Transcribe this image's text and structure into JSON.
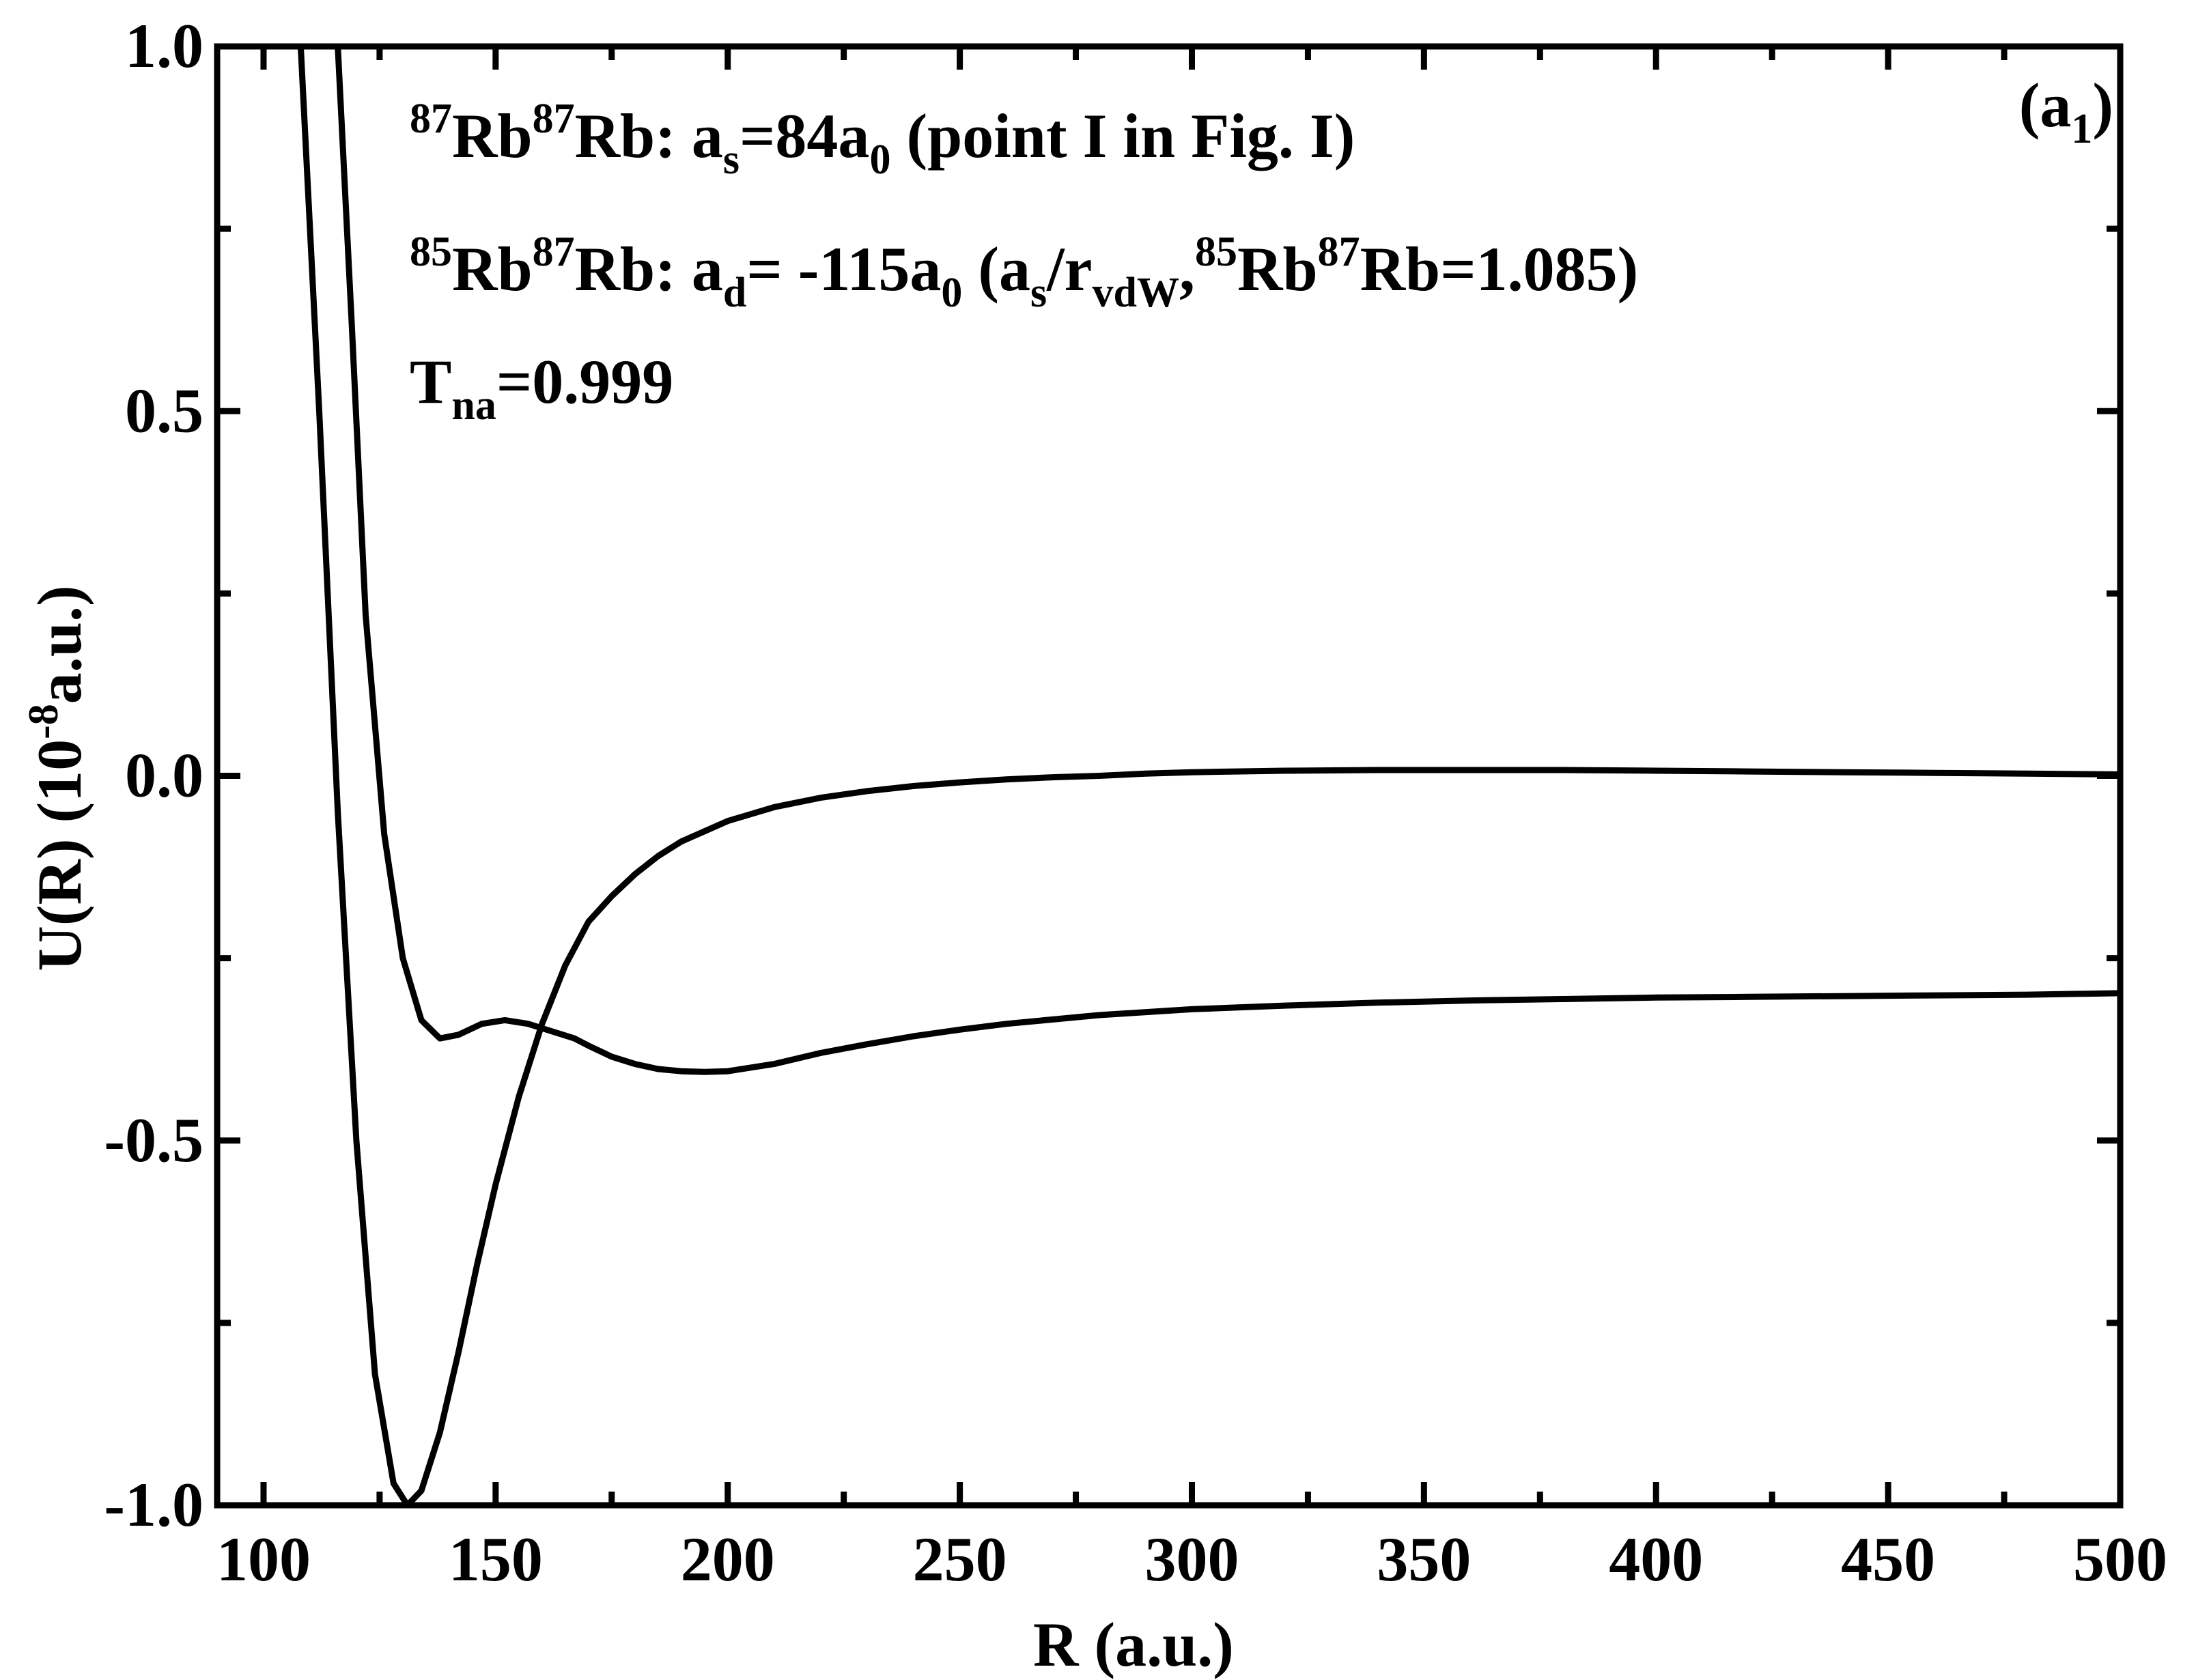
{
  "chart_data": {
    "type": "line",
    "xlabel": "R (a.u.)",
    "ylabel": {
      "main": "U(R) (10",
      "exp": "-8",
      "unit": "a.u.)"
    },
    "xlim": [
      90,
      500
    ],
    "ylim": [
      -1.0,
      1.0
    ],
    "x_ticks": [
      100,
      150,
      200,
      250,
      300,
      350,
      400,
      450,
      500
    ],
    "x_tick_labels": [
      "100",
      "150",
      "200",
      "250",
      "300",
      "350",
      "400",
      "450",
      "500"
    ],
    "y_ticks": [
      -1.0,
      -0.5,
      0.0,
      0.5,
      1.0
    ],
    "y_tick_labels": [
      "-1.0",
      "-0.5",
      "0.0",
      "0.5",
      "1.0"
    ],
    "grid": false,
    "panel_label": {
      "open": "(a",
      "sub": "1",
      "close": ")"
    },
    "annotations": {
      "line1": {
        "sup1": "87",
        "t1": "Rb",
        "sup2": "87",
        "t2": "Rb: a",
        "sub1": "s",
        "t3": "=84a",
        "sub2": "0",
        "t4": " (point I in Fig. I)"
      },
      "line2": {
        "sup1": "85",
        "t1": "Rb",
        "sup2": "87",
        "t2": "Rb: a",
        "sub1": "d",
        "t3": "= -115a",
        "sub2": "0",
        "t4": "  (a",
        "sub3": "s",
        "t5": "/r",
        "sub4": "vdW",
        "t6": ",",
        "sup3": "85",
        "t7": "Rb",
        "sup4": "87",
        "t8": "Rb=1.085)"
      },
      "line3": {
        "t1": "T",
        "sub1": "na",
        "t2": "=0.999"
      }
    },
    "series": [
      {
        "x": [
          108,
          112,
          116,
          120,
          124,
          128,
          131,
          134,
          138,
          142,
          146,
          150,
          155,
          160,
          165,
          170,
          175,
          180,
          185,
          190,
          200,
          210,
          220,
          230,
          240,
          250,
          260,
          270,
          280,
          290,
          300,
          320,
          340,
          360,
          380,
          400,
          420,
          440,
          460,
          480,
          500
        ],
        "y": [
          1.0,
          0.5,
          -0.05,
          -0.5,
          -0.82,
          -0.97,
          -1.0,
          -0.98,
          -0.9,
          -0.79,
          -0.67,
          -0.56,
          -0.44,
          -0.34,
          -0.26,
          -0.2,
          -0.165,
          -0.135,
          -0.11,
          -0.09,
          -0.062,
          -0.043,
          -0.03,
          -0.021,
          -0.014,
          -0.009,
          -0.005,
          -0.002,
          0.0,
          0.003,
          0.005,
          0.007,
          0.008,
          0.008,
          0.008,
          0.007,
          0.006,
          0.005,
          0.004,
          0.003,
          0.002
        ]
      },
      {
        "x": [
          116,
          119,
          122,
          126,
          130,
          134,
          138,
          142,
          147,
          152,
          157,
          162,
          167,
          170,
          175,
          180,
          185,
          190,
          195,
          200,
          210,
          220,
          230,
          240,
          250,
          260,
          280,
          300,
          320,
          340,
          360,
          380,
          400,
          420,
          440,
          460,
          480,
          500
        ],
        "y": [
          1.0,
          0.62,
          0.22,
          -0.08,
          -0.25,
          -0.335,
          -0.36,
          -0.355,
          -0.34,
          -0.335,
          -0.34,
          -0.35,
          -0.36,
          -0.37,
          -0.385,
          -0.395,
          -0.402,
          -0.405,
          -0.406,
          -0.405,
          -0.395,
          -0.38,
          -0.368,
          -0.357,
          -0.348,
          -0.34,
          -0.328,
          -0.32,
          -0.315,
          -0.311,
          -0.308,
          -0.306,
          -0.304,
          -0.303,
          -0.302,
          -0.301,
          -0.3,
          -0.298
        ]
      }
    ]
  }
}
